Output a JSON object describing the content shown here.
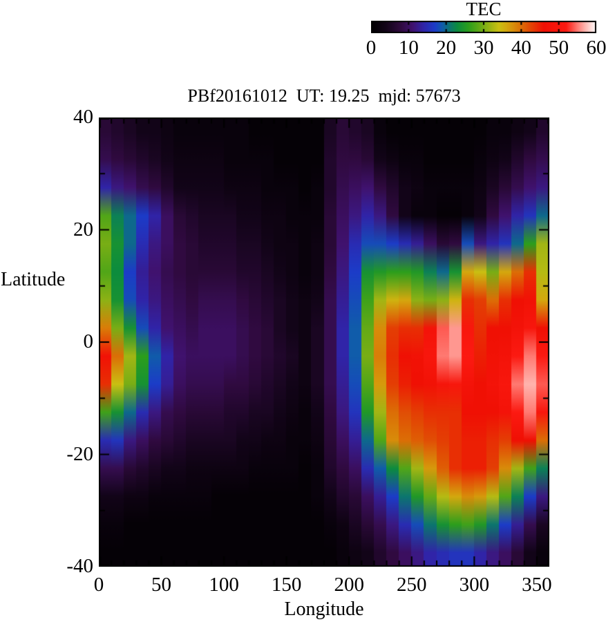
{
  "chart_data": {
    "type": "heatmap",
    "title": "PBf20161012  UT: 19.25  mjd: 57673",
    "xlabel": "Longitude",
    "ylabel": "Latitude",
    "xlim": [
      0,
      360
    ],
    "ylim": [
      -40,
      40
    ],
    "x_major_ticks": [
      0,
      50,
      100,
      150,
      200,
      250,
      300,
      350
    ],
    "x_minor_step": 10,
    "y_major_ticks": [
      40,
      20,
      0,
      -20,
      -40
    ],
    "y_minor_step": 10,
    "grid": false,
    "colorbar": {
      "label": "TEC",
      "min": 0,
      "max": 60,
      "ticks": [
        0,
        10,
        20,
        30,
        40,
        50,
        60
      ],
      "position": "top-right"
    },
    "grid_definition": {
      "lon_start": 0,
      "lon_step": 10,
      "lon_cols": 36,
      "lat_start": 40,
      "lat_step": -5,
      "lat_rows": 16,
      "units": "TEC units, rows ordered top (lat 40..35) to bottom (lat -35..-40)"
    },
    "values": [
      [
        7,
        6,
        5,
        4,
        4,
        3,
        2,
        2,
        2,
        2,
        2,
        2,
        1,
        1,
        1,
        1,
        1,
        1,
        5,
        7,
        6,
        5,
        2,
        1,
        1,
        1,
        1,
        1,
        1,
        1,
        1,
        2,
        2,
        3,
        4,
        6
      ],
      [
        9,
        8,
        7,
        6,
        5,
        4,
        3,
        3,
        3,
        3,
        2,
        2,
        2,
        2,
        1,
        1,
        1,
        1,
        6,
        8,
        8,
        7,
        4,
        3,
        2,
        2,
        1,
        1,
        1,
        1,
        2,
        3,
        4,
        6,
        8,
        9
      ],
      [
        14,
        12,
        11,
        9,
        8,
        6,
        4,
        4,
        4,
        4,
        3,
        3,
        3,
        2,
        2,
        2,
        1,
        2,
        6,
        9,
        10,
        11,
        8,
        6,
        4,
        3,
        2,
        2,
        2,
        2,
        3,
        5,
        7,
        9,
        11,
        12
      ],
      [
        28,
        22,
        20,
        17,
        14,
        10,
        7,
        6,
        5,
        5,
        5,
        4,
        4,
        3,
        3,
        2,
        2,
        2,
        7,
        10,
        12,
        14,
        12,
        8,
        4,
        2,
        2,
        1,
        1,
        2,
        4,
        8,
        11,
        14,
        16,
        20
      ],
      [
        30,
        24,
        20,
        15,
        12,
        10,
        8,
        7,
        6,
        6,
        6,
        5,
        5,
        4,
        3,
        3,
        2,
        3,
        7,
        11,
        15,
        18,
        18,
        17,
        15,
        13,
        10,
        7,
        8,
        18,
        12,
        14,
        16,
        20,
        26,
        32
      ],
      [
        28,
        23,
        17,
        13,
        11,
        9,
        8,
        7,
        7,
        7,
        7,
        6,
        6,
        5,
        4,
        3,
        2,
        3,
        8,
        12,
        17,
        24,
        25,
        26,
        26,
        25,
        22,
        20,
        24,
        36,
        34,
        30,
        36,
        40,
        44,
        33
      ],
      [
        31,
        24,
        18,
        14,
        12,
        10,
        9,
        8,
        9,
        9,
        9,
        8,
        7,
        6,
        5,
        4,
        3,
        4,
        9,
        13,
        18,
        27,
        32,
        35,
        36,
        31,
        30,
        31,
        35,
        44,
        43,
        40,
        44,
        46,
        47,
        36
      ],
      [
        39,
        30,
        24,
        18,
        14,
        11,
        10,
        9,
        10,
        10,
        10,
        9,
        8,
        7,
        5,
        4,
        3,
        5,
        9,
        14,
        19,
        29,
        38,
        43,
        44,
        44,
        48,
        54,
        56,
        50,
        44,
        46,
        46,
        48,
        50,
        46
      ],
      [
        47,
        40,
        32,
        26,
        19,
        14,
        11,
        10,
        10,
        10,
        10,
        9,
        8,
        7,
        6,
        5,
        3,
        5,
        9,
        14,
        19,
        30,
        39,
        44,
        46,
        47,
        50,
        55,
        56,
        52,
        45,
        47,
        48,
        52,
        55,
        52
      ],
      [
        44,
        34,
        30,
        24,
        17,
        13,
        10,
        9,
        9,
        9,
        8,
        8,
        7,
        6,
        5,
        4,
        3,
        5,
        9,
        13,
        18,
        28,
        37,
        43,
        45,
        46,
        47,
        49,
        50,
        48,
        46,
        48,
        50,
        55,
        57,
        54
      ],
      [
        27,
        24,
        20,
        15,
        12,
        9,
        8,
        7,
        7,
        7,
        6,
        6,
        5,
        5,
        4,
        3,
        2,
        4,
        8,
        12,
        16,
        25,
        32,
        40,
        42,
        43,
        44,
        44,
        44,
        46,
        46,
        46,
        48,
        52,
        55,
        50
      ],
      [
        15,
        16,
        12,
        10,
        8,
        7,
        6,
        5,
        5,
        5,
        5,
        4,
        4,
        3,
        3,
        2,
        2,
        3,
        7,
        10,
        13,
        20,
        28,
        38,
        40,
        41,
        42,
        43,
        44,
        45,
        45,
        44,
        43,
        46,
        46,
        40
      ],
      [
        9,
        9,
        7,
        6,
        5,
        4,
        4,
        3,
        3,
        3,
        3,
        3,
        2,
        2,
        2,
        2,
        1,
        2,
        6,
        8,
        10,
        15,
        19,
        23,
        28,
        32,
        37,
        41,
        44,
        45,
        45,
        43,
        38,
        32,
        27,
        22
      ],
      [
        4,
        4,
        3,
        3,
        2,
        2,
        2,
        2,
        2,
        1,
        1,
        1,
        1,
        1,
        1,
        1,
        1,
        2,
        4,
        6,
        7,
        10,
        13,
        17,
        21,
        25,
        29,
        33,
        36,
        38,
        37,
        33,
        28,
        22,
        17,
        12
      ],
      [
        2,
        2,
        1,
        1,
        1,
        1,
        1,
        1,
        1,
        1,
        1,
        1,
        1,
        1,
        1,
        1,
        1,
        1,
        2,
        3,
        5,
        7,
        9,
        12,
        15,
        18,
        21,
        24,
        26,
        27,
        25,
        21,
        17,
        13,
        9,
        5
      ],
      [
        1,
        1,
        1,
        1,
        1,
        1,
        1,
        1,
        1,
        1,
        1,
        1,
        1,
        1,
        1,
        1,
        1,
        1,
        1,
        2,
        3,
        4,
        6,
        8,
        10,
        12,
        14,
        15,
        16,
        16,
        14,
        12,
        10,
        7,
        4,
        2
      ]
    ],
    "colormap_stops": [
      [
        0,
        0,
        0,
        0
      ],
      [
        4,
        18,
        4,
        24
      ],
      [
        8,
        48,
        10,
        64
      ],
      [
        11,
        64,
        18,
        110
      ],
      [
        14,
        48,
        36,
        168
      ],
      [
        17,
        28,
        60,
        200
      ],
      [
        19,
        16,
        92,
        170
      ],
      [
        21,
        12,
        118,
        110
      ],
      [
        23,
        12,
        140,
        62
      ],
      [
        26,
        44,
        158,
        28
      ],
      [
        29,
        100,
        170,
        22
      ],
      [
        32,
        162,
        182,
        20
      ],
      [
        34,
        202,
        192,
        18
      ],
      [
        36,
        212,
        168,
        14
      ],
      [
        38,
        216,
        140,
        10
      ],
      [
        40,
        220,
        110,
        6
      ],
      [
        43,
        228,
        62,
        4
      ],
      [
        46,
        240,
        16,
        4
      ],
      [
        52,
        252,
        26,
        18
      ],
      [
        55,
        255,
        122,
        114
      ],
      [
        57,
        255,
        180,
        174
      ],
      [
        60,
        255,
        255,
        255
      ]
    ],
    "frame_color": "#000000",
    "background_color": "#ffffff"
  },
  "colorbar_tick_labels": [
    "0",
    "10",
    "20",
    "30",
    "40",
    "50",
    "60"
  ],
  "x_tick_labels": [
    "0",
    "50",
    "100",
    "150",
    "200",
    "250",
    "300",
    "350"
  ],
  "y_tick_labels": [
    "40",
    "20",
    "0",
    "-20",
    "-40"
  ]
}
